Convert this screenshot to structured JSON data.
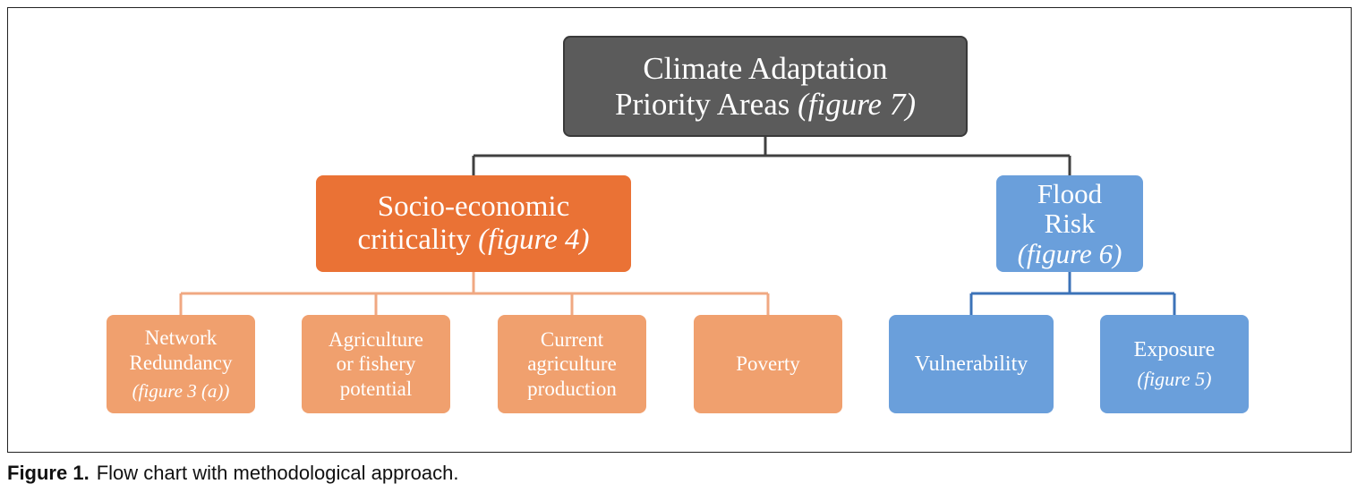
{
  "diagram": {
    "root": {
      "line1": "Climate Adaptation",
      "line2": "Priority Areas",
      "ref": "(figure 7)"
    },
    "socio": {
      "line1": "Socio-economic",
      "line2": "criticality",
      "ref": "(figure 4)"
    },
    "flood": {
      "line1": "Flood",
      "line2": "Risk",
      "ref": "(figure 6)"
    },
    "leaves": [
      {
        "line1": "Network",
        "line2": "Redundancy",
        "ref": "(figure 3 (a))"
      },
      {
        "line1": "Agriculture",
        "line2": "or fishery",
        "line3": "potential"
      },
      {
        "line1": "Current",
        "line2": "agriculture",
        "line3": "production"
      },
      {
        "line1": "Poverty"
      },
      {
        "line1": "Vulnerability"
      },
      {
        "line1": "Exposure",
        "ref": "(figure 5)"
      }
    ],
    "colors": {
      "root": "#5b5b5b",
      "socio": "#ea7235",
      "socio_leaf": "#f0a06e",
      "flood": "#6a9fdb",
      "connector_dark": "#404040",
      "connector_orange": "#f0a882",
      "connector_blue": "#3c73b8"
    }
  },
  "caption": {
    "label": "Figure 1.",
    "text": "Flow chart with methodological approach."
  }
}
